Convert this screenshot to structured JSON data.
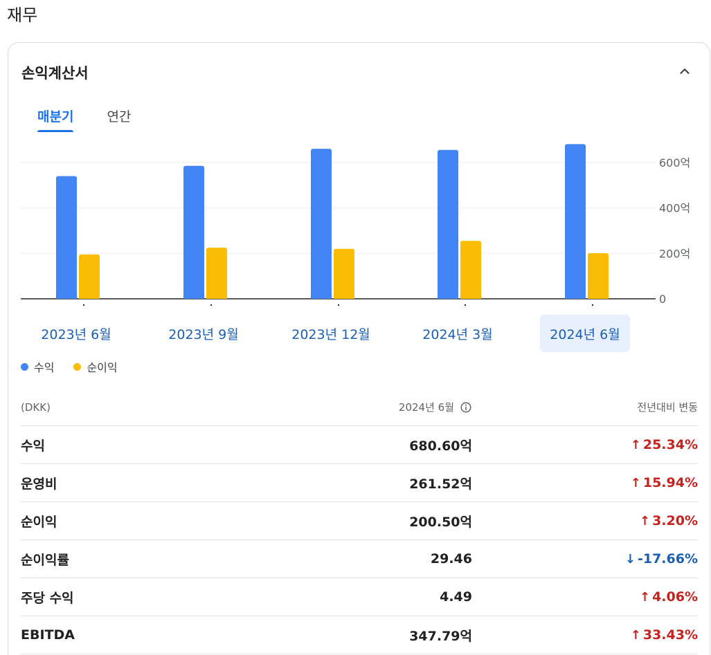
{
  "section_title": "재무",
  "card": {
    "title": "손익계산서",
    "collapse_icon": "chevron-up-icon"
  },
  "tabs": [
    {
      "label": "매분기",
      "active": true
    },
    {
      "label": "연간",
      "active": false
    }
  ],
  "chart_data": {
    "type": "bar",
    "categories": [
      "2023년 6월",
      "2023년 9월",
      "2023년 12월",
      "2024년 3월",
      "2024년 6월"
    ],
    "series": [
      {
        "name": "수익",
        "color": "#4285f4",
        "values": [
          540,
          585,
          660,
          655,
          680.6
        ]
      },
      {
        "name": "순이익",
        "color": "#fbbc04",
        "values": [
          195,
          225,
          220,
          255,
          200.5
        ]
      }
    ],
    "yticks": [
      "0",
      "200억",
      "400억",
      "600억"
    ],
    "ytick_values": [
      0,
      200,
      400,
      600
    ],
    "ylim": [
      0,
      700
    ],
    "selected_category": "2024년 6월",
    "grid": true
  },
  "legend": [
    {
      "label": "수익",
      "color": "#4285f4"
    },
    {
      "label": "순이익",
      "color": "#fbbc04"
    }
  ],
  "table": {
    "header": {
      "currency": "(DKK)",
      "period": "2024년 6월",
      "change": "전년대비 변동",
      "info_icon": "info-icon"
    },
    "rows": [
      {
        "label": "수익",
        "value": "680.60억",
        "change": "25.34%",
        "direction": "up"
      },
      {
        "label": "운영비",
        "value": "261.52억",
        "change": "15.94%",
        "direction": "up"
      },
      {
        "label": "순이익",
        "value": "200.50억",
        "change": "3.20%",
        "direction": "up"
      },
      {
        "label": "순이익률",
        "value": "29.46",
        "change": "-17.66%",
        "direction": "down"
      },
      {
        "label": "주당 수익",
        "value": "4.49",
        "change": "4.06%",
        "direction": "up"
      },
      {
        "label": "EBITDA",
        "value": "347.79억",
        "change": "33.43%",
        "direction": "up"
      }
    ]
  }
}
